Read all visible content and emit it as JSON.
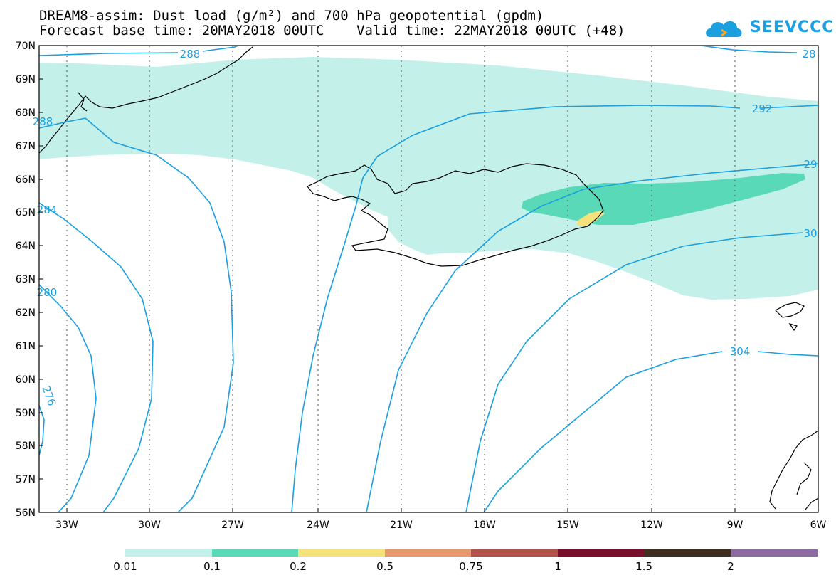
{
  "title": {
    "line1": "DREAM8-assim: Dust load (g/m²) and 700 hPa geopotential (gpdm)",
    "line2": "Forecast base time: 20MAY2018 00UTC    Valid time: 22MAY2018 00UTC (+48)"
  },
  "logo": {
    "text": "SEEVCCC",
    "icon": "cloud-icon",
    "color": "#1a9fe0"
  },
  "map": {
    "region": "North Atlantic / Iceland",
    "latitude_labels": [
      "70N",
      "69N",
      "68N",
      "67N",
      "66N",
      "65N",
      "64N",
      "63N",
      "62N",
      "61N",
      "60N",
      "59N",
      "58N",
      "57N",
      "56N"
    ],
    "longitude_labels": [
      "33W",
      "30W",
      "27W",
      "24W",
      "21W",
      "18W",
      "15W",
      "12W",
      "9W",
      "6W"
    ],
    "lat_range": [
      56,
      70
    ],
    "lon_range": [
      -34.5,
      -6
    ],
    "grid": "dotted",
    "contour_color": "#1a9fe0",
    "contour_labels": [
      "288",
      "288",
      "28",
      "292",
      "29",
      "30",
      "304",
      "284",
      "280",
      "276"
    ]
  },
  "colorbar": {
    "ticks": [
      "0.01",
      "0.1",
      "0.2",
      "0.5",
      "0.75",
      "1",
      "1.5",
      "2"
    ],
    "colors": [
      "#c4f0ea",
      "#5ad9b8",
      "#f5e27a",
      "#e6986f",
      "#b0524a",
      "#7a0f2b",
      "#3d2e1f",
      "#8e6aa3"
    ]
  }
}
